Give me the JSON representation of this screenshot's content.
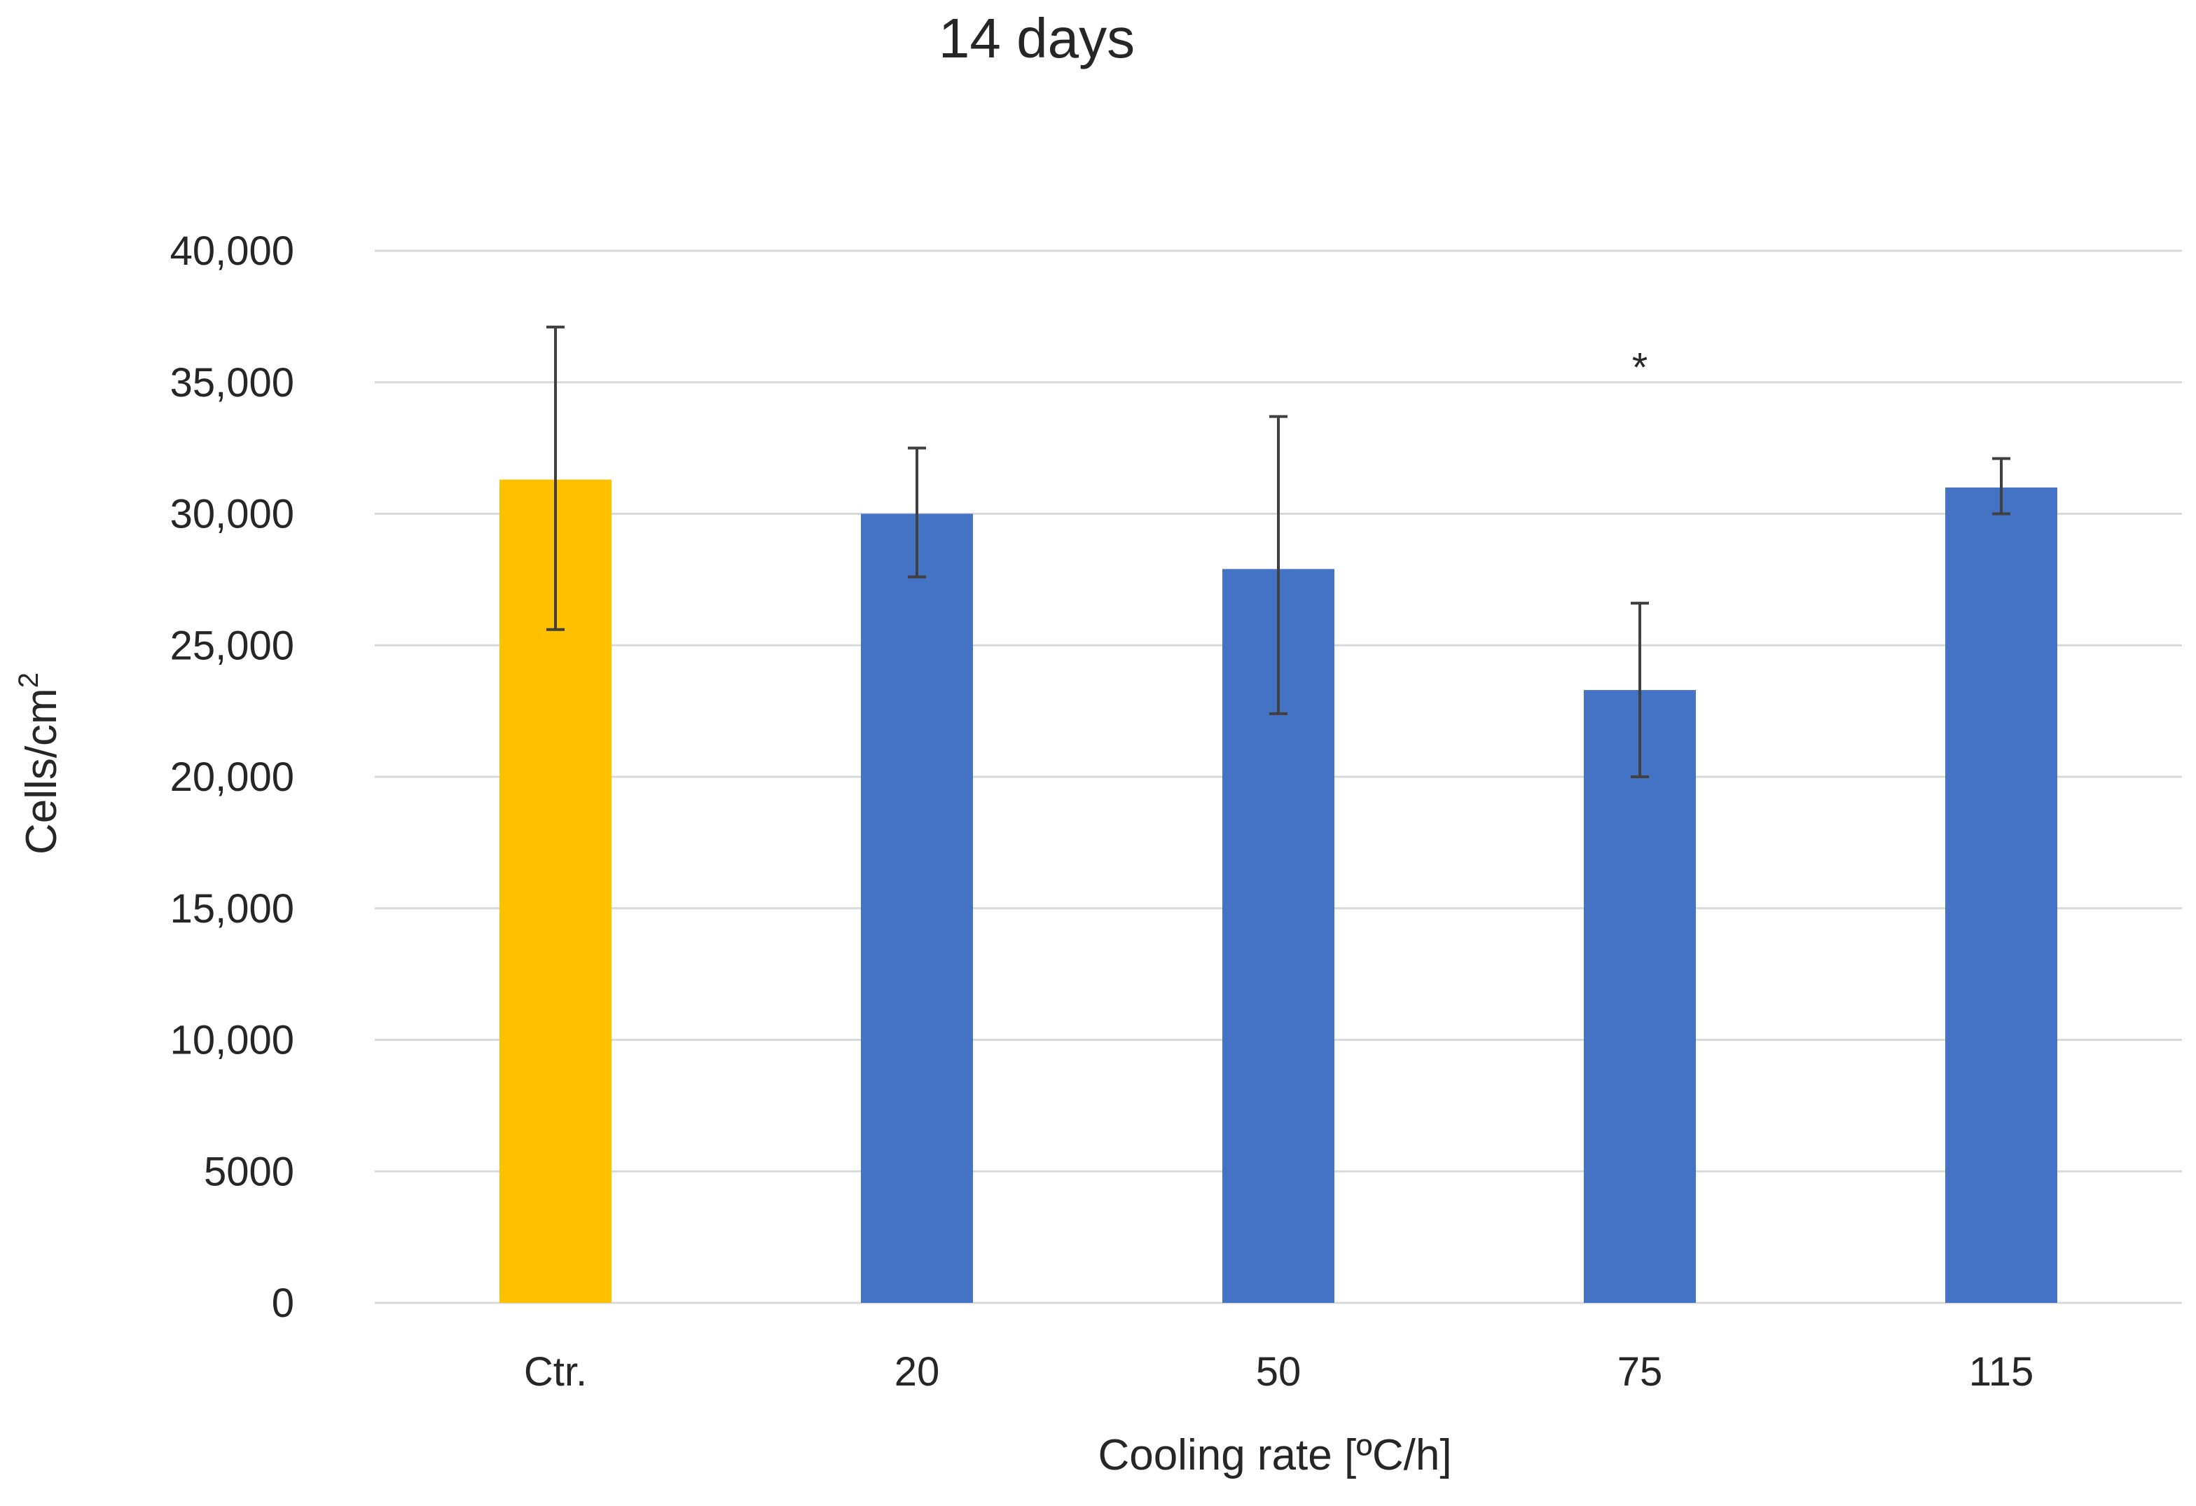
{
  "chart_data": {
    "type": "bar",
    "title": "14 days",
    "xlabel": "Cooling rate [ºC/h]",
    "ylabel": "Cells/cm",
    "ylabel_superscript": "2",
    "categories": [
      "Ctr.",
      "20",
      "50",
      "75",
      "115"
    ],
    "values": [
      31300,
      30000,
      27900,
      23300,
      31000
    ],
    "error_low": [
      25600,
      27600,
      22400,
      20000,
      30000
    ],
    "error_high": [
      37100,
      32500,
      33700,
      26600,
      32100
    ],
    "bar_colors": [
      "#FFC000",
      "#4472C4",
      "#4472C4",
      "#4472C4",
      "#4472C4"
    ],
    "ylim": [
      0,
      40000
    ],
    "yticks": [
      0,
      5000,
      10000,
      15000,
      20000,
      25000,
      30000,
      35000,
      40000
    ],
    "ytick_labels": [
      "0",
      "5000",
      "10,000",
      "15,000",
      "20,000",
      "25,000",
      "30,000",
      "35,000",
      "40,000"
    ],
    "grid": true,
    "annotations": [
      {
        "text": "*",
        "category": "75",
        "value": 36100
      }
    ]
  }
}
